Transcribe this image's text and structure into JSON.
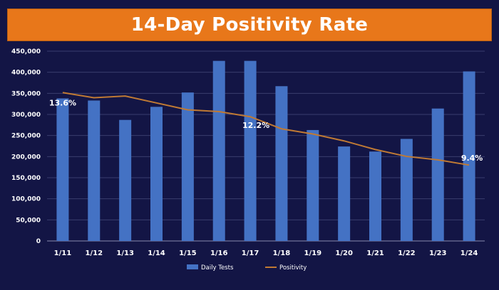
{
  "chart_data": {
    "type": "bar",
    "title": "14-Day Positivity Rate",
    "categories": [
      "1/11",
      "1/12",
      "1/13",
      "1/14",
      "1/15",
      "1/16",
      "1/17",
      "1/18",
      "1/19",
      "1/20",
      "1/21",
      "1/22",
      "1/23",
      "1/24"
    ],
    "series": [
      {
        "name": "Daily Tests",
        "type": "bar",
        "color": "#4472c4",
        "values": [
          338000,
          333000,
          287000,
          318000,
          352000,
          427000,
          427000,
          367000,
          263000,
          224000,
          212000,
          242000,
          314000,
          402000
        ]
      },
      {
        "name": "Positivity",
        "type": "line",
        "color": "#c07a34",
        "values": [
          13.6,
          13.3,
          13.4,
          13.0,
          12.6,
          12.5,
          12.2,
          11.5,
          11.2,
          10.8,
          10.3,
          9.9,
          9.7,
          9.4
        ]
      }
    ],
    "data_labels": [
      {
        "index": 0,
        "text": "13.6%"
      },
      {
        "index": 6,
        "text": "12.2%"
      },
      {
        "index": 13,
        "text": "9.4%"
      }
    ],
    "yticks": [
      "450,000",
      "400,000",
      "350,000",
      "300,000",
      "250,000",
      "200,000",
      "150,000",
      "100,000",
      "50,000",
      "0"
    ],
    "ylim": [
      0,
      450000
    ],
    "grid": true,
    "legend": "bottom"
  }
}
